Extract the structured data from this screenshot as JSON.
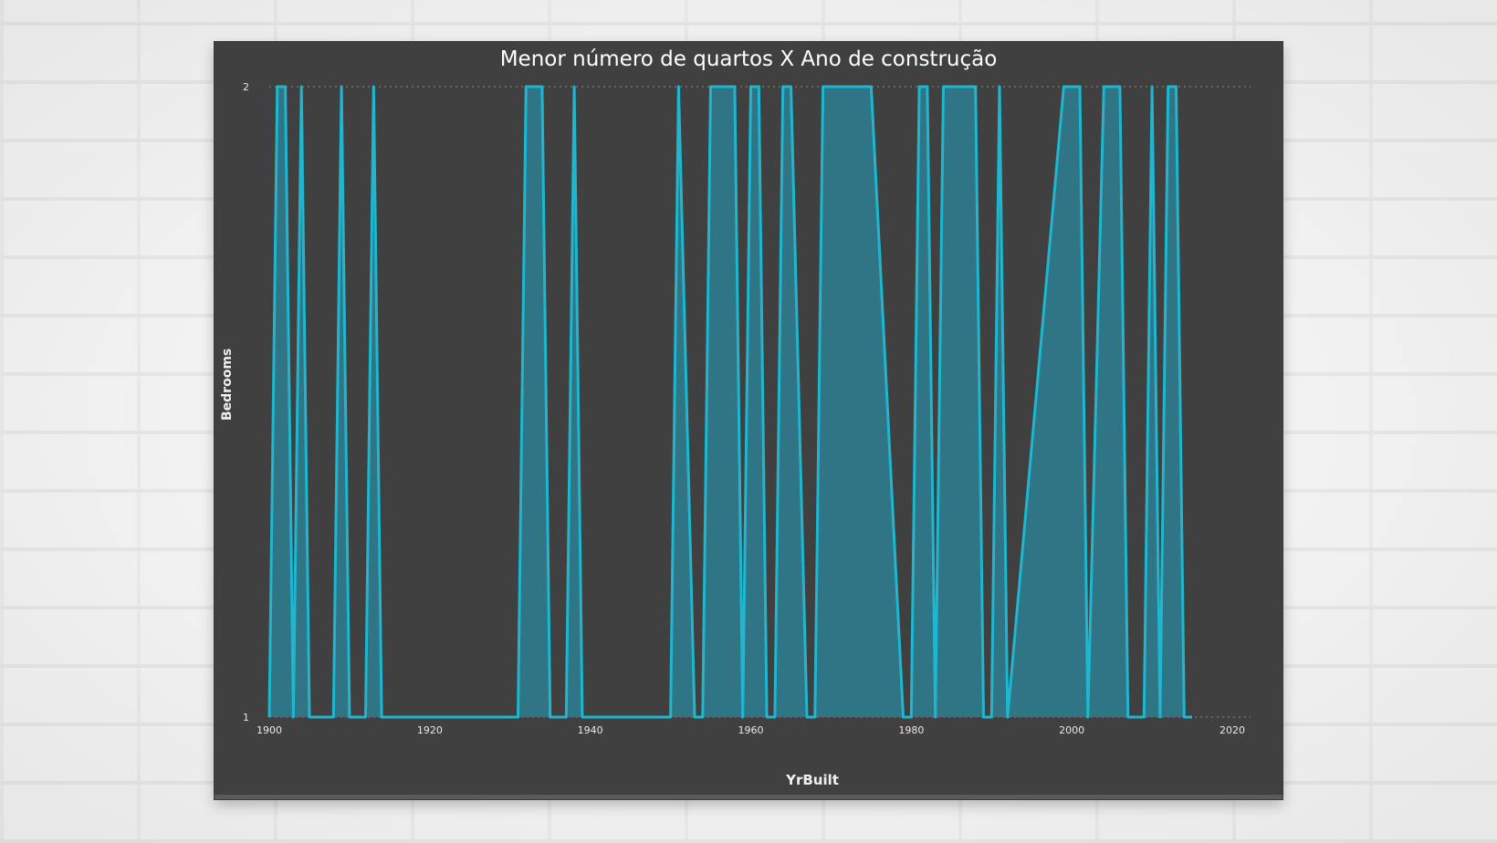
{
  "chart_data": {
    "type": "area",
    "title": "Menor número de quartos X Ano de construção",
    "xlabel": "YrBuilt",
    "ylabel": "Bedrooms",
    "xlim": [
      1900,
      2020
    ],
    "ylim": [
      1,
      2
    ],
    "xticks": [
      "1900",
      "1920",
      "1940",
      "1960",
      "1980",
      "2000",
      "2020"
    ],
    "yticks": [
      "1",
      "2"
    ],
    "grid": "horizontal-dotted",
    "legend": "none",
    "colors": {
      "line": "#1fb6d0",
      "fill": "#2f7585",
      "background": "#404040",
      "grid": "#7a7a7a"
    },
    "x": [
      1900,
      1901,
      1902,
      1903,
      1904,
      1905,
      1908,
      1909,
      1910,
      1912,
      1913,
      1914,
      1931,
      1932,
      1933,
      1934,
      1935,
      1937,
      1938,
      1939,
      1950,
      1951,
      1953,
      1954,
      1955,
      1956,
      1958,
      1959,
      1960,
      1961,
      1962,
      1963,
      1964,
      1965,
      1967,
      1968,
      1969,
      1970,
      1974,
      1975,
      1979,
      1980,
      1981,
      1982,
      1983,
      1984,
      1987,
      1988,
      1989,
      1990,
      1991,
      1992,
      1999,
      2000,
      2001,
      2002,
      2004,
      2005,
      2006,
      2007,
      2009,
      2010,
      2011,
      2012,
      2013,
      2014,
      2015
    ],
    "values": [
      1,
      2,
      2,
      1,
      2,
      1,
      1,
      2,
      1,
      1,
      2,
      1,
      1,
      2,
      2,
      2,
      1,
      1,
      2,
      1,
      1,
      2,
      1,
      1,
      2,
      2,
      2,
      1,
      2,
      2,
      1,
      1,
      2,
      2,
      1,
      1,
      2,
      2,
      2,
      2,
      1,
      1,
      2,
      2,
      1,
      2,
      2,
      2,
      1,
      1,
      2,
      1,
      2,
      2,
      2,
      1,
      2,
      2,
      2,
      1,
      1,
      2,
      1,
      2,
      2,
      1,
      1
    ]
  }
}
